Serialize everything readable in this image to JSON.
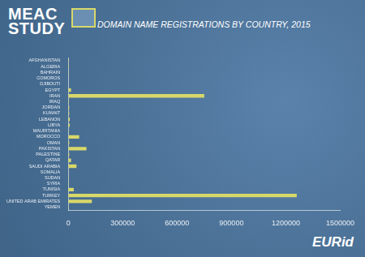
{
  "header": {
    "logo": [
      "MEAC",
      "STUDY"
    ]
  },
  "footer": {
    "brand": "EURid"
  },
  "chart_data": {
    "type": "bar",
    "title": "DOMAIN NAME REGISTRATIONS BY COUNTRY, 2015",
    "orientation": "horizontal",
    "categories": [
      "AFGHANISTAN",
      "ALGERIA",
      "BAHRAIN",
      "COMOROS",
      "DJIBOUTI",
      "EGYPT",
      "IRAN",
      "IRAQ",
      "JORDAN",
      "KUWAIT",
      "LEBANON",
      "LIBYA",
      "MAURITANIA",
      "MOROCCO",
      "OMAN",
      "PAKISTAN",
      "PALESTINE",
      "QATAR",
      "SAUDI ARABIA",
      "SOMALIA",
      "SUDAN",
      "SYRIA",
      "TUNISIA",
      "TURKEY",
      "UNITED ARAB EMIRATES",
      "YEMEN"
    ],
    "values": [
      3000,
      3000,
      2000,
      500,
      500,
      15000,
      750000,
      3000,
      5000,
      5000,
      8000,
      8000,
      1000,
      60000,
      5000,
      100000,
      5000,
      15000,
      45000,
      1000,
      2000,
      2000,
      30000,
      1260000,
      130000,
      1000
    ],
    "color": "#d8d86a",
    "xlim": [
      0,
      1500000
    ],
    "xticks": [
      0,
      300000,
      600000,
      900000,
      1200000,
      1500000
    ],
    "grid": false
  }
}
